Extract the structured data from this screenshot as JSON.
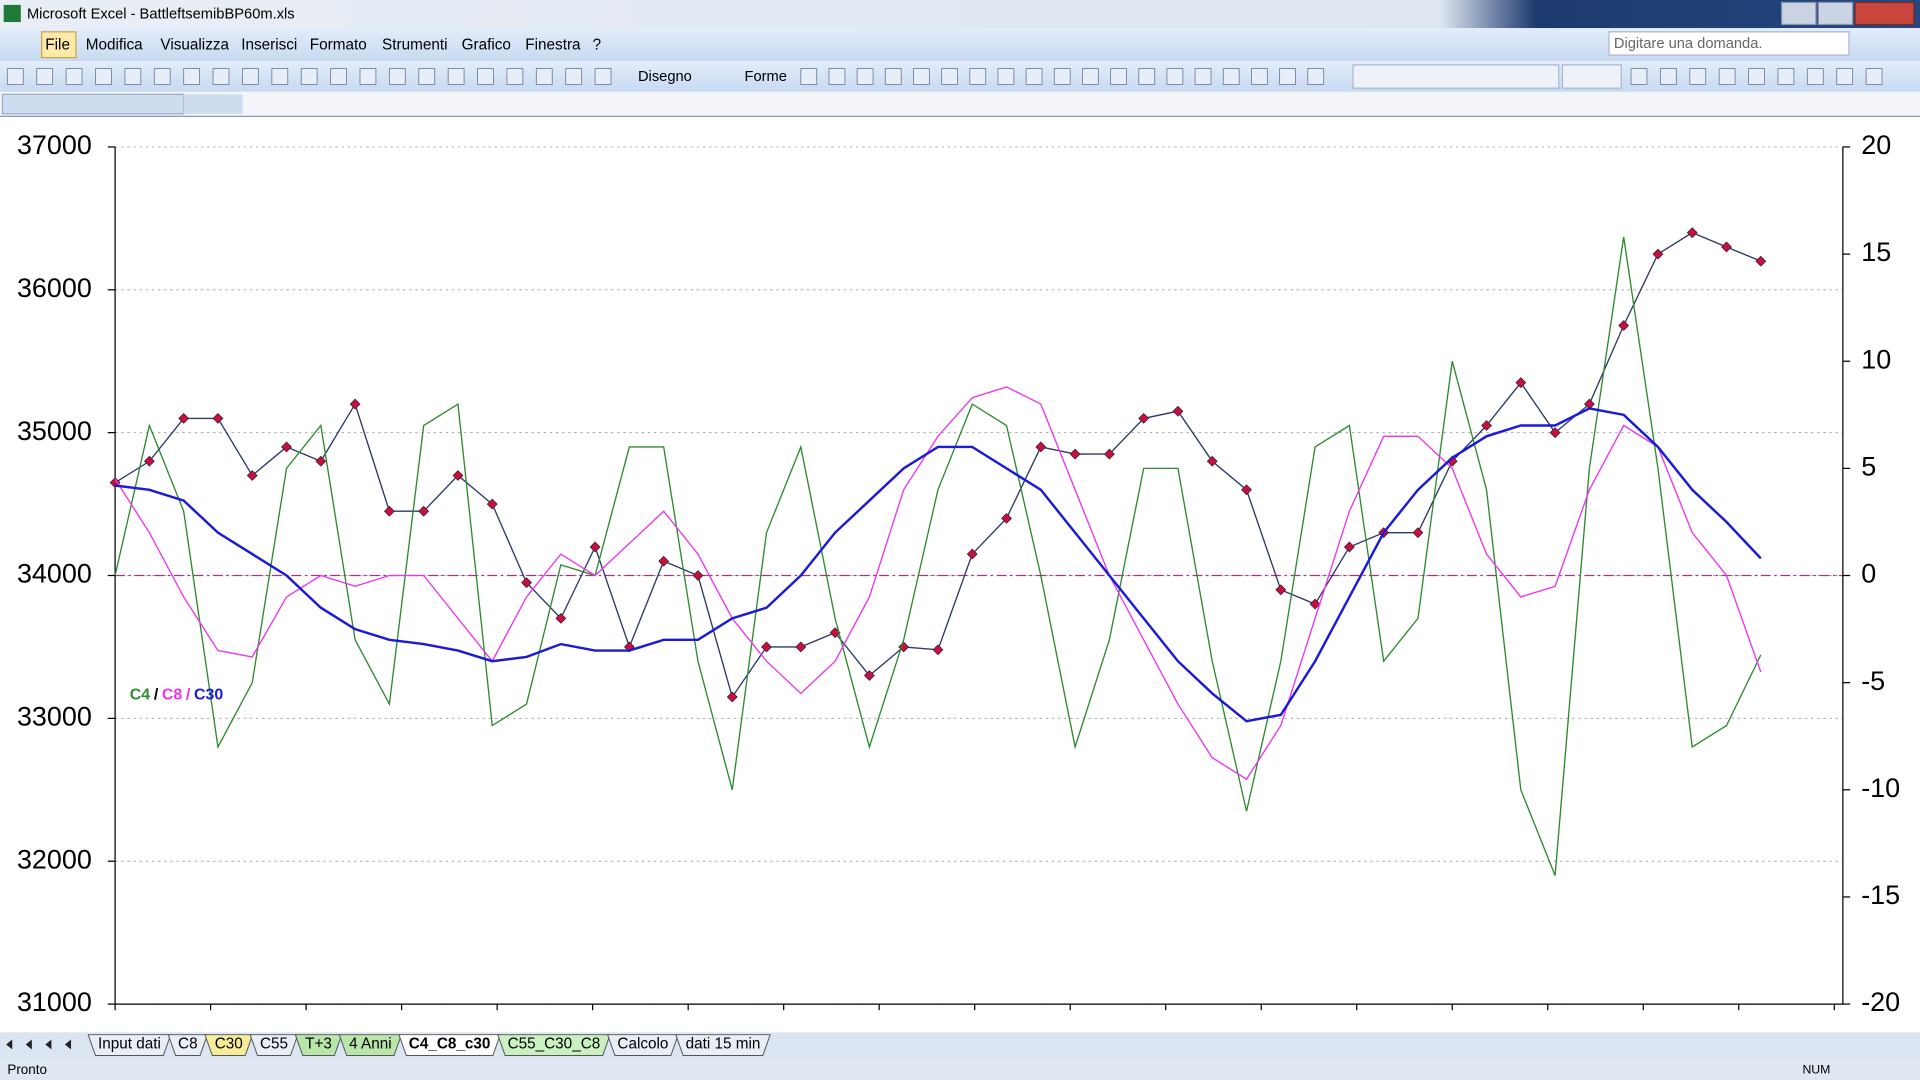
{
  "window": {
    "title": "Microsoft Excel - BattleftsemibBP60m.xls"
  },
  "menu": [
    "File",
    "Modifica",
    "Visualizza",
    "Inserisci",
    "Formato",
    "Strumenti",
    "Grafico",
    "Finestra",
    "?"
  ],
  "help_box": "Digitare una domanda.",
  "toolbar": {
    "draw": "Disegno",
    "shapes": "Forme"
  },
  "chart_data": {
    "type": "line",
    "ylim": [
      31000,
      37000
    ],
    "yticks": [
      31000,
      32000,
      33000,
      34000,
      35000,
      36000,
      37000
    ],
    "y2lim": [
      -20,
      20
    ],
    "y2ticks": [
      -20,
      -15,
      -10,
      -5,
      0,
      5,
      10,
      15,
      20
    ],
    "grid": true,
    "legend_separator": "/",
    "series": [
      {
        "color": "#c8103c",
        "line_color": "#2a3a6a",
        "marker": "diamond",
        "values": [
          34650,
          34800,
          35100,
          35100,
          34700,
          34900,
          34800,
          35200,
          34450,
          34450,
          34700,
          34500,
          33950,
          33700,
          34200,
          33500,
          34100,
          34000,
          33150,
          33500,
          33500,
          33600,
          33300,
          33500,
          33480,
          34150,
          34400,
          34900,
          34850,
          34850,
          35100,
          35150,
          34800,
          34600,
          33900,
          33800,
          34200,
          34300,
          34300,
          34800,
          35050,
          35350,
          35000,
          35200,
          35750,
          36250,
          36400,
          36300,
          36200
        ]
      },
      {
        "name": "C4",
        "color": "#2e8b2e",
        "axis": "y2",
        "values": [
          0,
          7,
          3,
          -8,
          -5,
          5,
          7,
          -3,
          -6,
          7,
          8,
          -7,
          -6,
          0.5,
          0,
          6,
          6,
          -4,
          -10,
          2,
          6,
          -2,
          -8,
          -3,
          4,
          8,
          7,
          0,
          -8,
          -3,
          5,
          5,
          -4,
          -11,
          -4,
          6,
          7,
          -4,
          -2,
          10,
          4,
          -10,
          -14,
          5,
          15.8,
          5,
          -8,
          -7,
          -3.7
        ]
      },
      {
        "name": "C8",
        "color": "#ee33ee",
        "axis": "y2",
        "values": [
          4.5,
          2,
          -1,
          -3.5,
          -3.8,
          -1,
          0,
          -0.5,
          0,
          0,
          -2,
          -4,
          -1,
          1,
          0,
          1.5,
          3,
          1,
          -2,
          -4,
          -5.5,
          -4,
          -1,
          4,
          6.5,
          8.3,
          8.8,
          8,
          4,
          0,
          -3,
          -6,
          -8.5,
          -9.5,
          -7,
          -2,
          3,
          6.5,
          6.5,
          5,
          1,
          -1,
          -0.5,
          4,
          7,
          6,
          2,
          0,
          -4.5
        ]
      },
      {
        "name": "C30",
        "color": "#1a1ad8",
        "axis": "y2",
        "values": [
          4.2,
          4,
          3.5,
          2,
          1,
          0,
          -1.5,
          -2.5,
          -3,
          -3.2,
          -3.5,
          -4,
          -3.8,
          -3.2,
          -3.5,
          -3.5,
          -3,
          -3,
          -2,
          -1.5,
          0,
          2,
          3.5,
          5,
          6,
          6,
          5,
          4,
          2,
          0,
          -2,
          -4,
          -5.5,
          -6.8,
          -6.5,
          -4,
          -1,
          2,
          4,
          5.5,
          6.5,
          7,
          7,
          7.8,
          7.5,
          6,
          4,
          2.5,
          0.8
        ]
      }
    ]
  },
  "sheet_tabs": [
    "Input dati",
    "C8",
    "C30",
    "C55",
    "T+3",
    "4 Anni",
    "C4_C8_c30",
    "C55_C30_C8",
    "Calcolo",
    "dati 15 min"
  ],
  "status": {
    "left": "Pronto",
    "num": "NUM"
  }
}
